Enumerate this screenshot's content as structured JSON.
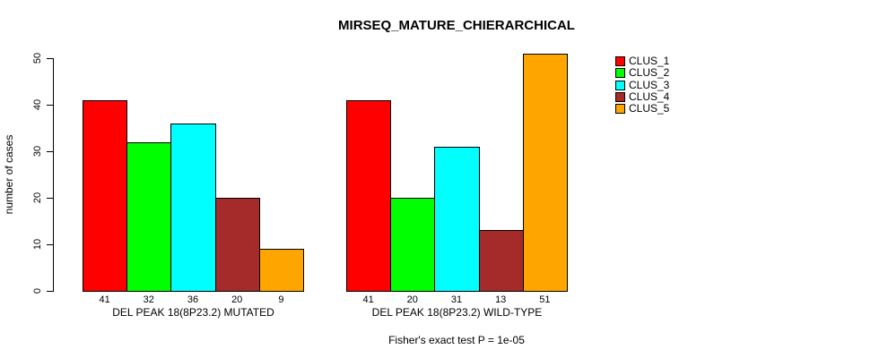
{
  "title": "MIRSEQ_MATURE_CHIERARCHICAL",
  "legend": [
    {
      "label": "CLUS_1",
      "color": "#FF0000"
    },
    {
      "label": "CLUS_2",
      "color": "#00FF00"
    },
    {
      "label": "CLUS_3",
      "color": "#00FFFF"
    },
    {
      "label": "CLUS_4",
      "color": "#A52A2A"
    },
    {
      "label": "CLUS_5",
      "color": "#FFA500"
    }
  ],
  "chart_data": {
    "type": "bar",
    "title": "MIRSEQ_MATURE_CHIERARCHICAL",
    "xlabel": "",
    "ylabel": "number of cases",
    "ylim": [
      0,
      50
    ],
    "yticks": [
      0,
      10,
      20,
      30,
      40,
      50
    ],
    "grid": false,
    "legend_position": "top-right",
    "series_names": [
      "CLUS_1",
      "CLUS_2",
      "CLUS_3",
      "CLUS_4",
      "CLUS_5"
    ],
    "series_colors": [
      "#FF0000",
      "#00FF00",
      "#00FFFF",
      "#A52A2A",
      "#FFA500"
    ],
    "groups": [
      {
        "label": "DEL PEAK 18(8P23.2) MUTATED",
        "values": [
          41,
          32,
          36,
          20,
          9
        ]
      },
      {
        "label": "DEL PEAK 18(8P23.2) WILD-TYPE",
        "values": [
          41,
          20,
          31,
          13,
          51
        ]
      }
    ],
    "annotation": "Fisher's exact test P = 1e-05"
  }
}
